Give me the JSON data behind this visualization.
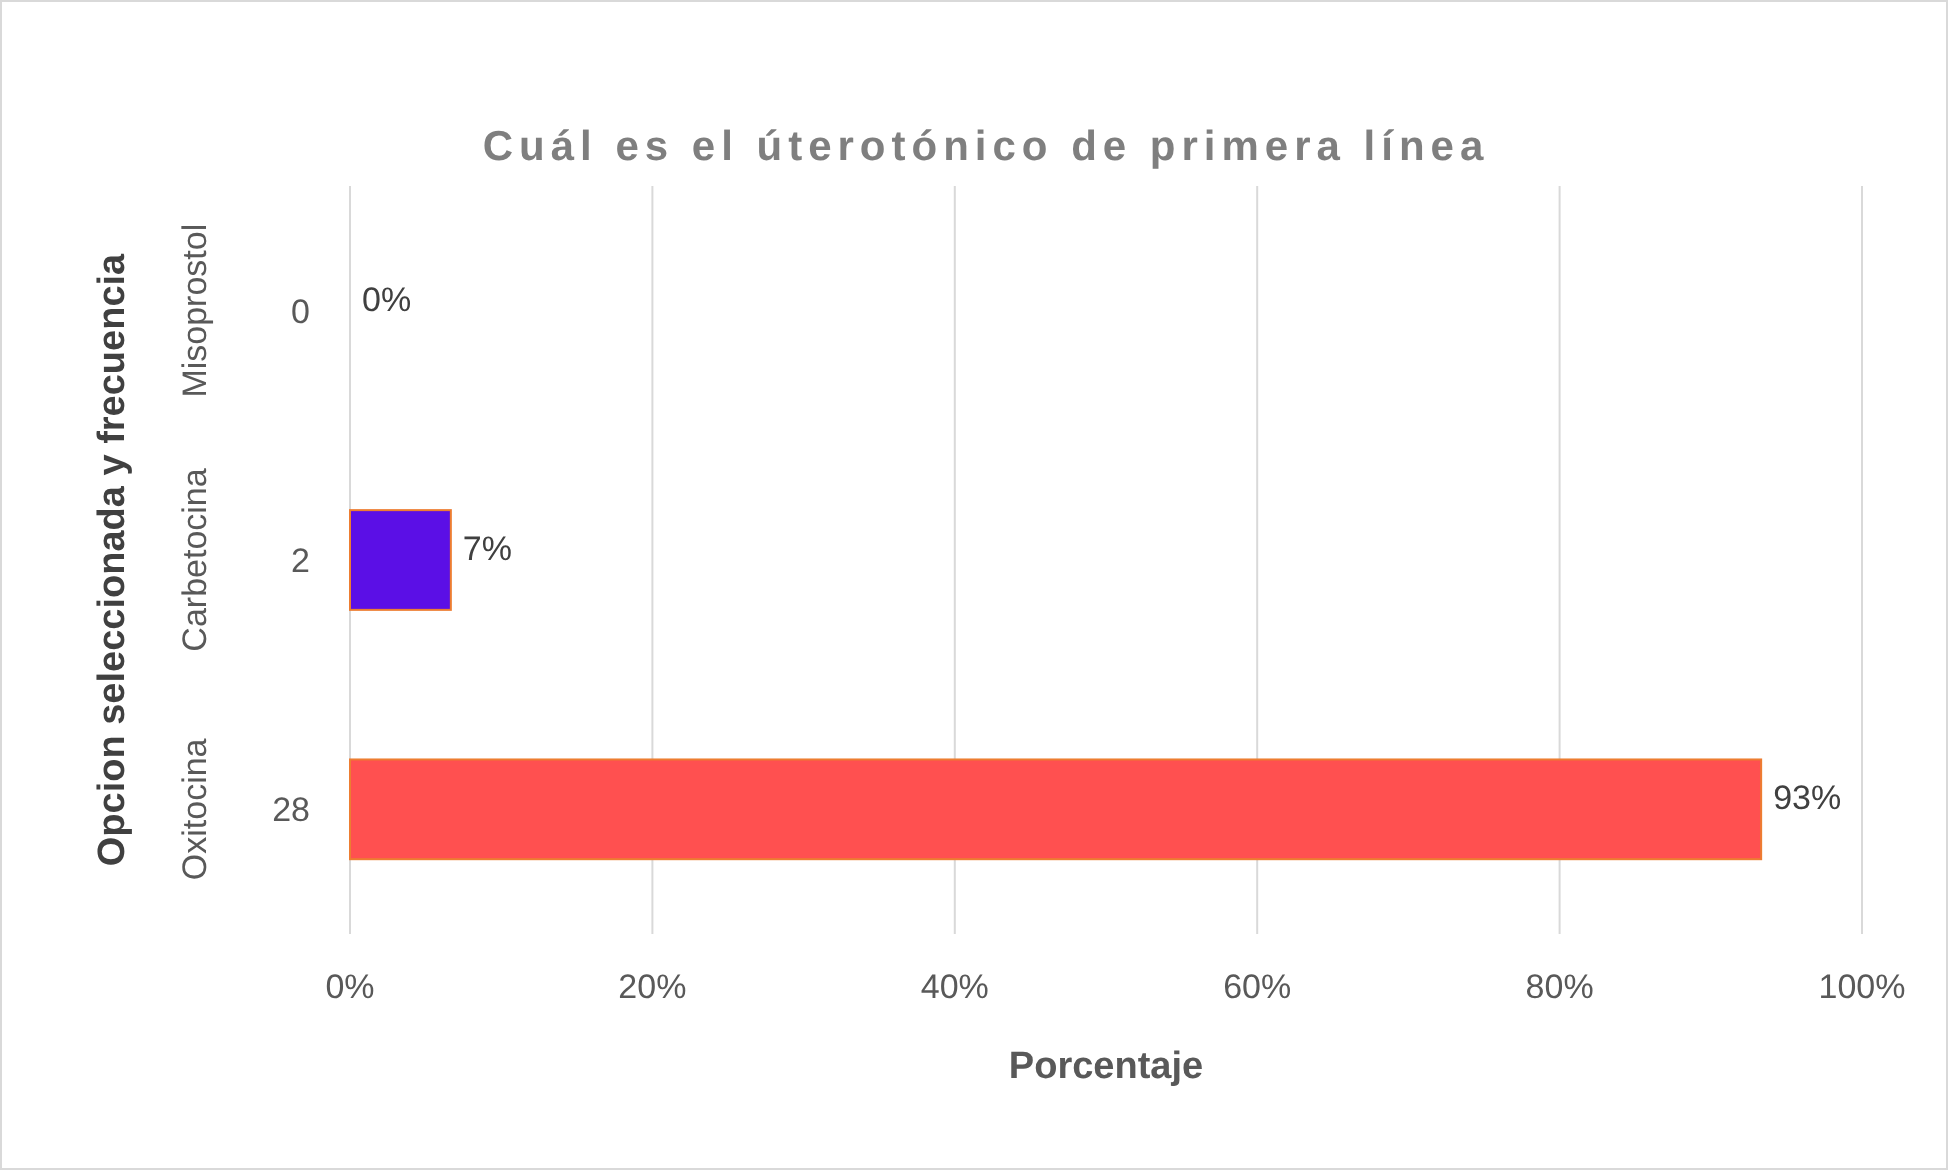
{
  "chart_data": {
    "type": "bar",
    "orientation": "horizontal",
    "title": "Cuál es el úterotónico de primera línea",
    "xlabel": "Porcentaje",
    "ylabel": "Opcion seleccionada y frecuencia",
    "categories": [
      "Misoprostol",
      "Carbetocina",
      "Oxitocina"
    ],
    "values": [
      0,
      6.67,
      93.33
    ],
    "colors": [
      "#4472c4",
      "#5b0fe6",
      "#ff5050"
    ],
    "value_labels": [
      "0%",
      "7%",
      "93%"
    ],
    "annotations": [
      "0",
      "2",
      "28"
    ],
    "xlim": [
      0,
      100
    ],
    "xticks": [
      {
        "value": 0,
        "label": "0%"
      },
      {
        "value": 20,
        "label": "20%"
      },
      {
        "value": 40,
        "label": "40%"
      },
      {
        "value": 60,
        "label": "60%"
      },
      {
        "value": 80,
        "label": "80%"
      },
      {
        "value": 100,
        "label": "100%"
      }
    ],
    "grid": "x"
  }
}
